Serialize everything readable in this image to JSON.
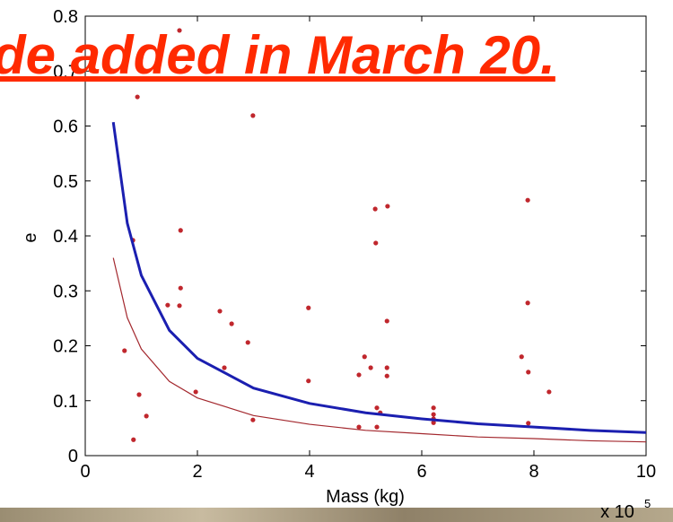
{
  "chart_data": {
    "type": "scatter",
    "x_label": "Mass (kg)",
    "y_label": "e",
    "x_multiplier": {
      "base": "x 10",
      "exponent": "5"
    },
    "annotation": "de added in March 20.",
    "xlim": [
      0,
      10
    ],
    "ylim": [
      0,
      0.8
    ],
    "xticks": [
      0,
      2,
      4,
      6,
      8,
      10
    ],
    "yticks": [
      0,
      0.1,
      0.2,
      0.3,
      0.4,
      0.5,
      0.6,
      0.7,
      0.8
    ],
    "series": [
      {
        "style": "points",
        "color": "#c0272d",
        "x": [
          1.68,
          0.93,
          2.99,
          1.7,
          0.85,
          1.7,
          1.68,
          1.47,
          2.4,
          2.61,
          2.9,
          0.7,
          2.48,
          1.97,
          0.96,
          1.09,
          0.86,
          2.99,
          3.98,
          3.98,
          5.17,
          5.39,
          5.18,
          5.38,
          4.98,
          5.09,
          5.38,
          5.38,
          4.88,
          5.2,
          5.26,
          5.2,
          4.88,
          6.21,
          6.21,
          6.21,
          6.21,
          7.89,
          7.89,
          7.78,
          7.9,
          8.27,
          7.9
        ],
        "values": [
          0.774,
          0.653,
          0.619,
          0.41,
          0.392,
          0.305,
          0.273,
          0.274,
          0.263,
          0.24,
          0.206,
          0.191,
          0.16,
          0.116,
          0.111,
          0.072,
          0.029,
          0.065,
          0.269,
          0.136,
          0.449,
          0.454,
          0.387,
          0.245,
          0.18,
          0.16,
          0.16,
          0.145,
          0.147,
          0.087,
          0.078,
          0.052,
          0.052,
          0.087,
          0.075,
          0.067,
          0.06,
          0.465,
          0.278,
          0.18,
          0.152,
          0.116,
          0.059
        ]
      },
      {
        "style": "line",
        "color": "#1b1fb0",
        "width": 3,
        "x": [
          0.5,
          0.75,
          1,
          1.5,
          2,
          3,
          4,
          5,
          6,
          7,
          8,
          9,
          10
        ],
        "values": [
          0.607,
          0.423,
          0.328,
          0.228,
          0.177,
          0.123,
          0.095,
          0.078,
          0.067,
          0.058,
          0.052,
          0.046,
          0.042
        ]
      },
      {
        "style": "line",
        "color": "#a3282e",
        "width": 1.2,
        "x": [
          0.5,
          0.75,
          1,
          1.5,
          2,
          3,
          4,
          5,
          6,
          7,
          8,
          9,
          10
        ],
        "values": [
          0.36,
          0.251,
          0.194,
          0.135,
          0.105,
          0.073,
          0.057,
          0.046,
          0.04,
          0.034,
          0.031,
          0.027,
          0.025
        ]
      }
    ]
  }
}
